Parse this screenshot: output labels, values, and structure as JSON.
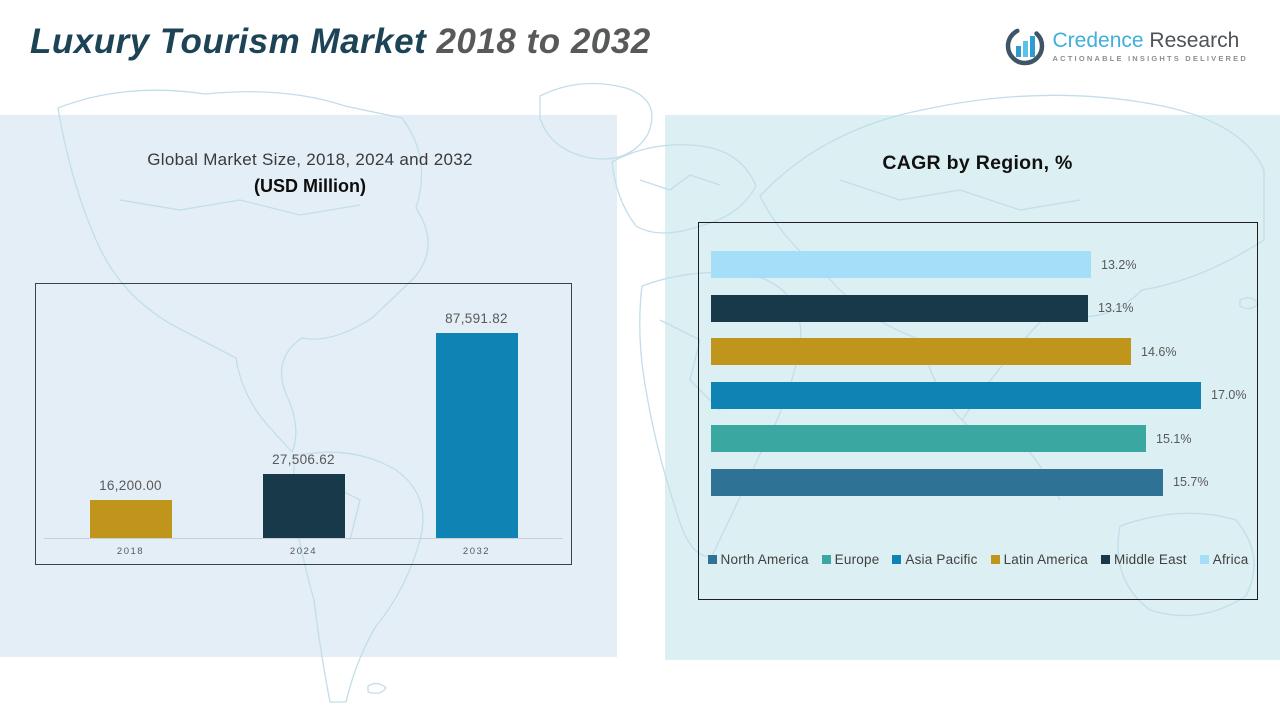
{
  "header": {
    "title_main": "Luxury Tourism Market ",
    "title_years": "2018 to 2032",
    "logo": {
      "brand_first": "Credence ",
      "brand_second": "Research",
      "tagline": "ACTIONABLE INSIGHTS DELIVERED",
      "brand_color": "#41AEDC"
    }
  },
  "chart_data": [
    {
      "type": "bar",
      "orientation": "vertical",
      "title": "Global Market Size, 2018, 2024 and 2032",
      "subtitle": "(USD Million)",
      "categories": [
        "2018",
        "2024",
        "2032"
      ],
      "values": [
        16200.0,
        27506.62,
        87591.82
      ],
      "value_labels": [
        "16,200.00",
        "27,506.62",
        "87,591.82"
      ],
      "colors": [
        "#C0951C",
        "#17394A",
        "#0E83B4"
      ],
      "ylim": [
        0,
        95000
      ],
      "grid": false,
      "legend_position": "none",
      "xlabel": "",
      "ylabel": ""
    },
    {
      "type": "bar",
      "orientation": "horizontal",
      "title": "CAGR by Region, %",
      "categories": [
        "Africa",
        "Middle East",
        "Latin America",
        "Asia Pacific",
        "Europe",
        "North America"
      ],
      "values": [
        13.2,
        13.1,
        14.6,
        17.0,
        15.1,
        15.7
      ],
      "value_labels": [
        "13.2%",
        "13.1%",
        "14.6%",
        "17.0%",
        "15.1%",
        "15.7%"
      ],
      "colors": [
        "#A5DEF8",
        "#17394A",
        "#C0951C",
        "#0E83B4",
        "#3AA8A1",
        "#2E7396"
      ],
      "xlim": [
        0,
        18
      ],
      "grid": false,
      "legend_position": "bottom",
      "legend": [
        {
          "label": "North America",
          "color": "#2E7396"
        },
        {
          "label": "Europe",
          "color": "#3AA8A1"
        },
        {
          "label": "Asia Pacific",
          "color": "#0E83B4"
        },
        {
          "label": "Latin America",
          "color": "#C0951C"
        },
        {
          "label": "Middle East",
          "color": "#17394A"
        },
        {
          "label": "Africa",
          "color": "#A5DEF8"
        }
      ]
    }
  ]
}
